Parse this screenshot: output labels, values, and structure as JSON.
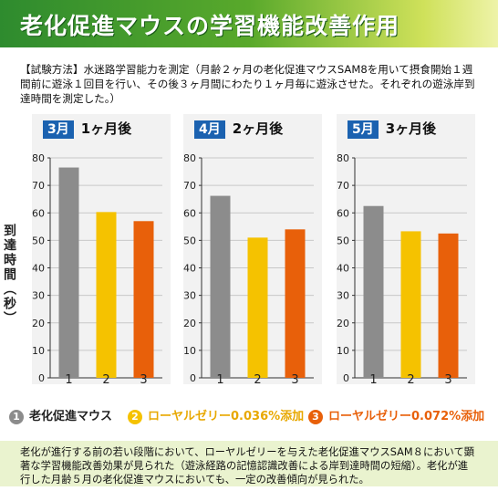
{
  "title": "老化促進マウスの学習機能改善作用",
  "method": "【試験方法】水迷路学習能力を測定（月齢２ヶ月の老化促進マウスSAM8を用いて摂食開始１週間前に遊泳１回目を行い、その後３ヶ月間にわたり１ヶ月毎に遊泳させた。それぞれの遊泳岸到達時間を測定した。）",
  "ylabel": "到達時間（秒）",
  "colors": {
    "gray": "#8c8c8c",
    "yellow": "#f5c200",
    "orange": "#e8600a",
    "blue": "#1b62b0"
  },
  "legend": [
    {
      "num": "1",
      "label": "老化促進マウス",
      "color": "#8c8c8c",
      "textColor": "#222222"
    },
    {
      "num": "2",
      "label": "ローヤルゼリー0.036%添加",
      "color": "#f5c200",
      "textColor": "#e8a800"
    },
    {
      "num": "3",
      "label": "ローヤルゼリー0.072%添加",
      "color": "#e8600a",
      "textColor": "#e8600a"
    }
  ],
  "chart_data": [
    {
      "type": "bar",
      "month": "3月",
      "after": "1ヶ月後",
      "categories": [
        "1",
        "2",
        "3"
      ],
      "values": [
        76.5,
        60.3,
        57.0
      ],
      "ylim": [
        0,
        80
      ],
      "yticks": [
        0,
        10,
        20,
        30,
        40,
        50,
        60,
        70,
        80
      ],
      "grid": true
    },
    {
      "type": "bar",
      "month": "4月",
      "after": "2ヶ月後",
      "categories": [
        "1",
        "2",
        "3"
      ],
      "values": [
        66.2,
        51.0,
        54.0
      ],
      "ylim": [
        0,
        80
      ],
      "yticks": [
        0,
        10,
        20,
        30,
        40,
        50,
        60,
        70,
        80
      ],
      "grid": true
    },
    {
      "type": "bar",
      "month": "5月",
      "after": "3ヶ月後",
      "categories": [
        "1",
        "2",
        "3"
      ],
      "values": [
        62.5,
        53.3,
        52.5
      ],
      "ylim": [
        0,
        80
      ],
      "yticks": [
        0,
        10,
        20,
        30,
        40,
        50,
        60,
        70,
        80
      ],
      "grid": true
    }
  ],
  "note": "老化が進行する前の若い段階において、ローヤルゼリーを与えた老化促進マウスSAM８において顕著な学習機能改善効果が見られた（遊泳経路の記憶認識改善による岸到達時間の短縮）。老化が進行した月齢５月の老化促進マウスにおいても、一定の改善傾向が見られた。"
}
